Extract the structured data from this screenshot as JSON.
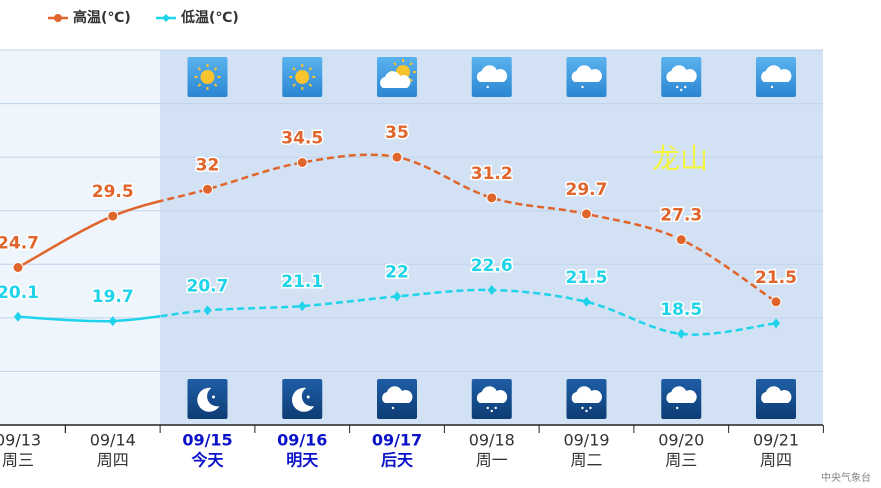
{
  "chart_data": {
    "type": "line",
    "categories": [
      "09/13",
      "09/14",
      "09/15",
      "09/16",
      "09/17",
      "09/18",
      "09/19",
      "09/20",
      "09/21"
    ],
    "weekdays": [
      "周三",
      "周四",
      "今天",
      "明天",
      "后天",
      "周一",
      "周二",
      "周三",
      "周四"
    ],
    "series": [
      {
        "name": "高温(℃)",
        "color": "#e0652c",
        "values": [
          24.7,
          29.5,
          32,
          34.5,
          35,
          31.2,
          29.7,
          27.3,
          21.5
        ]
      },
      {
        "name": "低温(℃)",
        "color": "#1ed3ea",
        "values": [
          20.1,
          19.7,
          20.7,
          21.1,
          22,
          22.6,
          21.5,
          18.5,
          19.5
        ],
        "value_labels": [
          "20.1",
          "19.7",
          "20.7",
          "21.1",
          "22",
          "22.6",
          "21.5",
          "18.5",
          null
        ]
      }
    ],
    "ylim": [
      10,
      45
    ],
    "yticks": [
      10,
      15,
      20,
      25,
      30,
      35,
      40,
      45
    ],
    "grid": true,
    "annotation": "龙山",
    "source": "中央气象台"
  }
}
